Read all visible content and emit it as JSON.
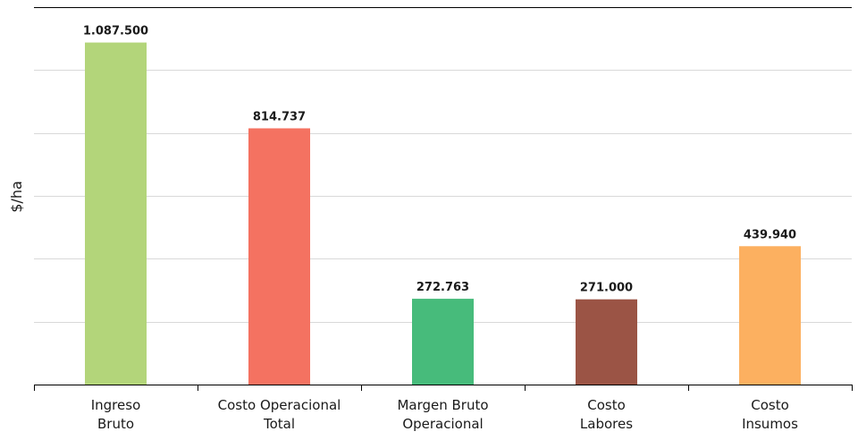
{
  "chart_data": {
    "type": "bar",
    "title": "",
    "xlabel": "",
    "ylabel": "$/ha",
    "ylim": [
      0,
      1200000
    ],
    "grid": true,
    "y_ticks_labeled": false,
    "categories": [
      [
        "Ingreso",
        "Bruto"
      ],
      [
        "Costo Operacional",
        "Total"
      ],
      [
        "Margen Bruto",
        "Operacional"
      ],
      [
        "Costo",
        "Labores"
      ],
      [
        "Costo",
        "Insumos"
      ]
    ],
    "values": [
      1087500,
      814737,
      272763,
      271000,
      439940
    ],
    "value_labels": [
      "1.087.500",
      "814.737",
      "272.763",
      "271.000",
      "439.940"
    ],
    "colors": [
      "#b3d57a",
      "#f47261",
      "#47bb7b",
      "#9b5445",
      "#fcb060"
    ]
  }
}
